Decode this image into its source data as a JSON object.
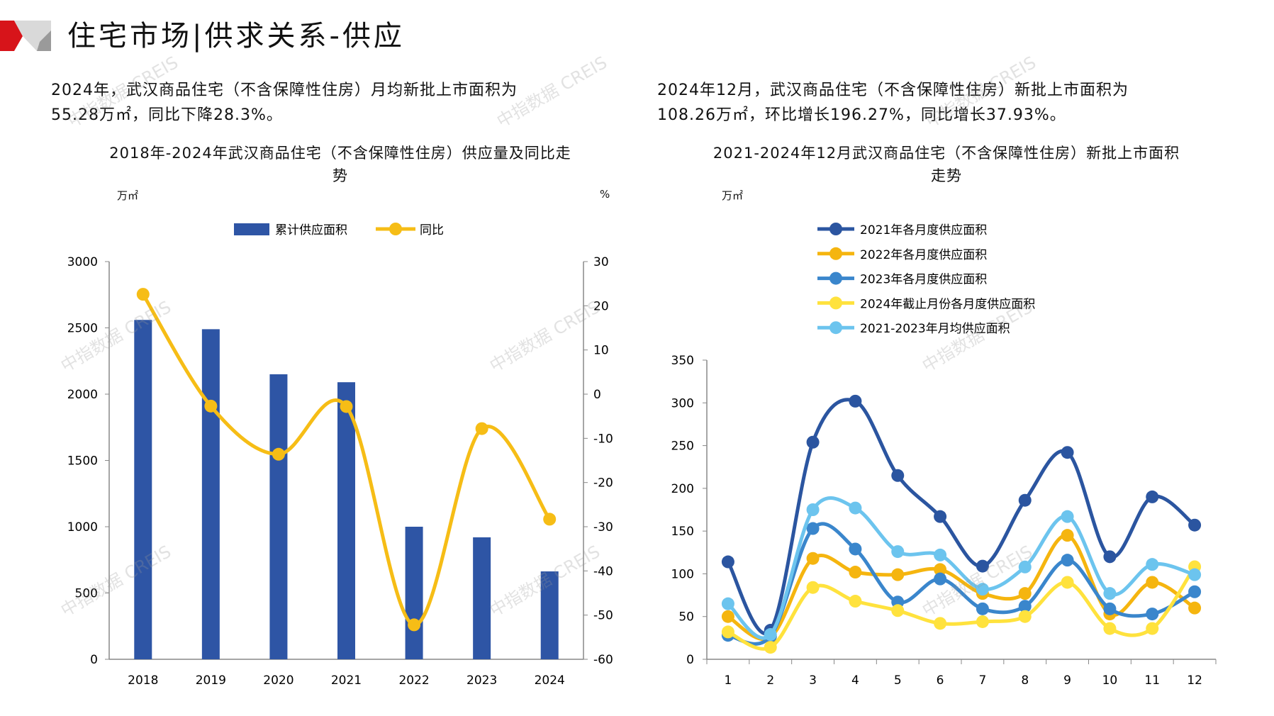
{
  "header": {
    "title": "住宅市场|供求关系-供应",
    "accent_color": "#d7141a"
  },
  "watermark": "中指数据 CREIS",
  "left": {
    "paragraph": [
      "2024年，武汉商品住宅（不含保障性住房）月均新批上市面积为",
      "55.28万㎡，同比下降28.3%。"
    ]
  },
  "right": {
    "paragraph": [
      "2024年12月，武汉商品住宅（不含保障性住房）新批上市面积为",
      "108.26万㎡，环比增长196.27%，同比增长37.93%。"
    ]
  },
  "chart_data": [
    {
      "type": "bar+line",
      "title": [
        "2018年-2024年武汉商品住宅（不含保障性住房）供应量及同比走",
        "势"
      ],
      "ylabel_left": "万㎡",
      "ylabel_right": "%",
      "categories": [
        "2018",
        "2019",
        "2020",
        "2021",
        "2022",
        "2023",
        "2024"
      ],
      "ylim_left": [
        0,
        3000
      ],
      "yticks_left": [
        0,
        500,
        1000,
        1500,
        2000,
        2500,
        3000
      ],
      "ylim_right": [
        -60,
        30
      ],
      "yticks_right": [
        -60,
        -50,
        -40,
        -30,
        -20,
        -10,
        0,
        10,
        20,
        30
      ],
      "legend_position": "top",
      "series": [
        {
          "name": "累计供应面积",
          "kind": "bar",
          "axis": "left",
          "color": "#2e55a5",
          "values": [
            2560,
            2490,
            2150,
            2090,
            1000,
            920,
            663
          ]
        },
        {
          "name": "同比",
          "kind": "line",
          "axis": "right",
          "color": "#f6bd16",
          "values": [
            22.6,
            -2.7,
            -13.6,
            -2.8,
            -52.2,
            -7.8,
            -28.3
          ]
        }
      ]
    },
    {
      "type": "line",
      "title": [
        "2021-2024年12月武汉商品住宅（不含保障性住房）新批上市面积",
        "走势"
      ],
      "ylabel": "万㎡",
      "categories": [
        "1",
        "2",
        "3",
        "4",
        "5",
        "6",
        "7",
        "8",
        "9",
        "10",
        "11",
        "12"
      ],
      "ylim": [
        0,
        350
      ],
      "yticks": [
        0,
        50,
        100,
        150,
        200,
        250,
        300,
        350
      ],
      "legend_position": "top-left",
      "series": [
        {
          "name": "2021年各月度供应面积",
          "color": "#2b55a0",
          "values": [
            114,
            34,
            254,
            302,
            215,
            167,
            109,
            186,
            242,
            120,
            190,
            157
          ]
        },
        {
          "name": "2022年各月度供应面积",
          "color": "#f5b50f",
          "values": [
            50,
            26,
            118,
            102,
            99,
            105,
            77,
            77,
            145,
            53,
            90,
            60
          ]
        },
        {
          "name": "2023年各月度供应面积",
          "color": "#3a86cc",
          "values": [
            28,
            27,
            153,
            129,
            67,
            94,
            59,
            62,
            116,
            59,
            53,
            79
          ]
        },
        {
          "name": "2024年截止月份各月度供应面积",
          "color": "#ffe23d",
          "values": [
            32,
            14,
            84,
            68,
            57,
            42,
            44,
            50,
            90,
            36,
            36,
            108.26
          ]
        },
        {
          "name": "2021-2023年月均供应面积",
          "color": "#6cc4ee",
          "values": [
            65,
            29,
            175,
            177,
            126,
            122,
            82,
            108,
            167,
            77,
            111,
            99
          ]
        }
      ]
    }
  ]
}
